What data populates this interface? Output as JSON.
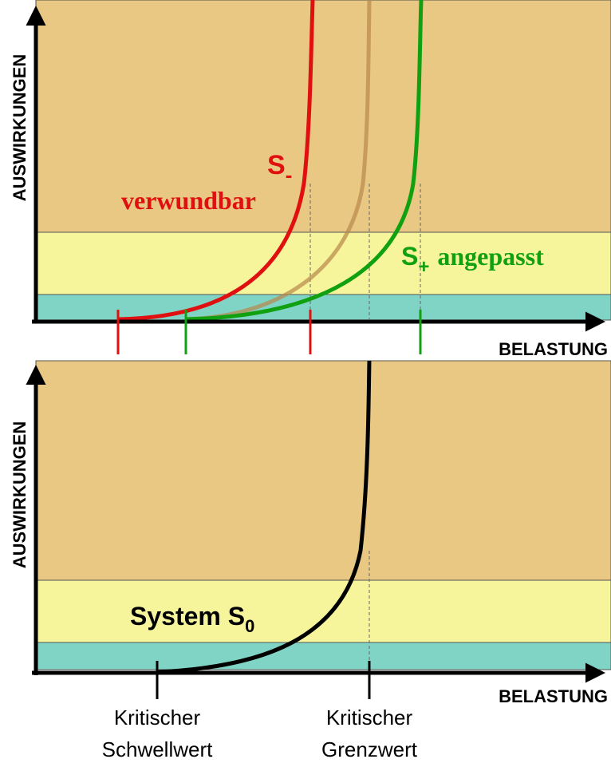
{
  "top": {
    "y_axis_label": "AUSWIRKUNGEN",
    "x_axis_label": "BELASTUNG",
    "s_minus": {
      "symbol": "S",
      "subscript": "-",
      "label": "verwundbar"
    },
    "s_plus": {
      "symbol": "S",
      "subscript": "+",
      "label": "angepasst"
    }
  },
  "bottom": {
    "y_axis_label": "AUSWIRKUNGEN",
    "x_axis_label": "BELASTUNG",
    "system": {
      "symbol": "System S",
      "subscript": "0"
    },
    "threshold": [
      "Kritischer",
      "Schwellwert"
    ],
    "limit": [
      "Kritischer",
      "Grenzwert"
    ]
  }
}
